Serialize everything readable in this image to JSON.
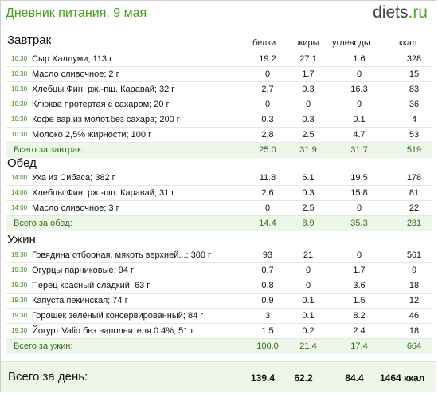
{
  "header": {
    "title": "Дневник питания, 9 мая",
    "logo_name": "diets",
    "logo_tld": ".ru"
  },
  "columns": [
    "белки",
    "жиры",
    "углеводы",
    "ккал"
  ],
  "sections": [
    {
      "title": "Завтрак",
      "rows": [
        {
          "time": "10:30",
          "name": "Сыр Халлуми; 113 г",
          "v": [
            "19.2",
            "27.1",
            "1.6",
            "328"
          ]
        },
        {
          "time": "10:30",
          "name": "Масло сливочное; 2 г",
          "v": [
            "0",
            "1.7",
            "0",
            "15"
          ]
        },
        {
          "time": "10:30",
          "name": "Хлебцы Фин. рж.-пш. Каравай; 32 г",
          "v": [
            "2.7",
            "0.3",
            "16.3",
            "83"
          ]
        },
        {
          "time": "10:30",
          "name": "Клюква протертая с сахаром; 20 г",
          "v": [
            "0",
            "0",
            "9",
            "36"
          ]
        },
        {
          "time": "10:30",
          "name": "Кофе вар.из молот.без сахара; 200 г",
          "v": [
            "0.3",
            "0.3",
            "0.1",
            "4"
          ]
        },
        {
          "time": "10:30",
          "name": "Молоко 2,5% жирности; 100 г",
          "v": [
            "2.8",
            "2.5",
            "4.7",
            "53"
          ]
        }
      ],
      "total": {
        "label": "Всего за завтрак:",
        "v": [
          "25.0",
          "31.9",
          "31.7",
          "519"
        ]
      }
    },
    {
      "title": "Обед",
      "rows": [
        {
          "time": "14:00",
          "name": "Уха из Сибаса; 382 г",
          "v": [
            "11.8",
            "6.1",
            "19.5",
            "178"
          ]
        },
        {
          "time": "14:00",
          "name": "Хлебцы Фин. рж.-пш. Каравай; 31 г",
          "v": [
            "2.6",
            "0.3",
            "15.8",
            "81"
          ]
        },
        {
          "time": "14:00",
          "name": "Масло сливочное; 3 г",
          "v": [
            "0",
            "2.5",
            "0",
            "22"
          ]
        }
      ],
      "total": {
        "label": "Всего за обед:",
        "v": [
          "14.4",
          "8.9",
          "35.3",
          "281"
        ]
      }
    },
    {
      "title": "Ужин",
      "rows": [
        {
          "time": "19:30",
          "name": "Говядина отборная, мякоть верхней...; 300 г",
          "v": [
            "93",
            "21",
            "0",
            "561"
          ]
        },
        {
          "time": "19:30",
          "name": "Огурцы парниковые; 94 г",
          "v": [
            "0.7",
            "0",
            "1.7",
            "9"
          ]
        },
        {
          "time": "19:30",
          "name": "Перец красный сладкий; 63 г",
          "v": [
            "0.8",
            "0",
            "3.6",
            "18"
          ]
        },
        {
          "time": "19:30",
          "name": "Капуста пекинская; 74 г",
          "v": [
            "0.9",
            "0.1",
            "1.5",
            "12"
          ]
        },
        {
          "time": "19:30",
          "name": "Горошек зелёный консервированный; 84 г",
          "v": [
            "3",
            "0.1",
            "8.2",
            "46"
          ]
        },
        {
          "time": "19:30",
          "name": "Йогурт Valio без наполнителя 0.4%; 51 г",
          "v": [
            "1.5",
            "0.2",
            "2.4",
            "18"
          ]
        }
      ],
      "total": {
        "label": "Всего за ужин:",
        "v": [
          "100.0",
          "21.4",
          "17.4",
          "664"
        ]
      }
    }
  ],
  "day_total": {
    "label": "Всего за день:",
    "v": [
      "139.4",
      "62.2",
      "84.4",
      "1464 ккал"
    ]
  },
  "colors": {
    "accent": "#44a018",
    "total_bg": "#eef6ea"
  }
}
